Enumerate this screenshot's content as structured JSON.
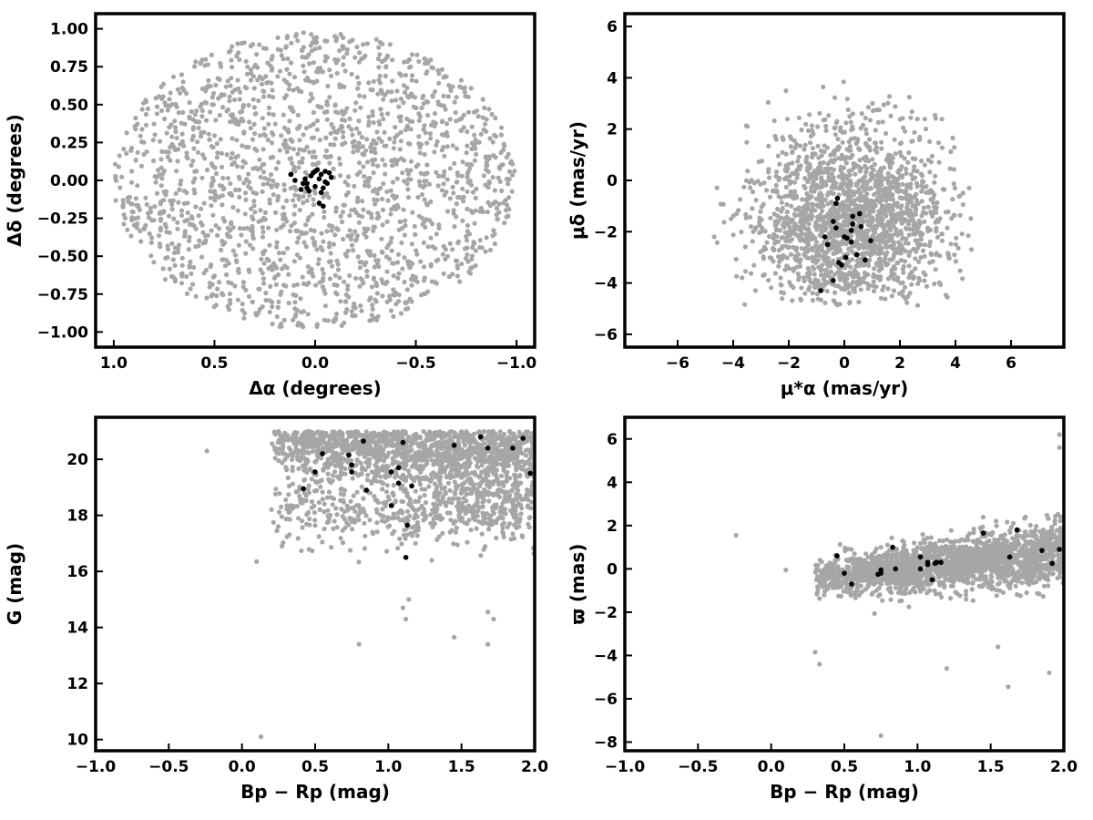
{
  "colors": {
    "field": "#a6a6a6",
    "members": "#000000",
    "axes": "#000000",
    "background": "#ffffff"
  },
  "chart_data": [
    {
      "id": "sky",
      "type": "scatter",
      "xlabel": "Δα (degrees)",
      "ylabel": "Δδ (degrees)",
      "xlim": [
        1.09,
        -1.09
      ],
      "ylim": [
        -1.1,
        1.1
      ],
      "x_inverted": true,
      "xticks": [
        1.0,
        0.5,
        0.0,
        -0.5,
        -1.0
      ],
      "xtick_labels": [
        "1.0",
        "0.5",
        "0.0",
        "−0.5",
        "−1.0"
      ],
      "yticks": [
        -1.0,
        -0.75,
        -0.5,
        -0.25,
        0.0,
        0.25,
        0.5,
        0.75,
        1.0
      ],
      "ytick_labels": [
        "−1.00",
        "−0.75",
        "−0.50",
        "−0.25",
        "0.00",
        "0.25",
        "0.50",
        "0.75",
        "1.00"
      ],
      "grid": false,
      "field": {
        "count": 1850,
        "shape": "disk",
        "center": [
          0,
          0
        ],
        "radius": 1.0
      },
      "series": [
        {
          "x": [
            0.1,
            0.06,
            0.04,
            0.02,
            0.0,
            -0.01,
            -0.03,
            -0.05,
            -0.07,
            -0.08,
            0.03,
            0.0,
            -0.02,
            -0.05,
            0.07,
            0.12,
            0.05,
            -0.03,
            -0.06,
            0.01,
            0.04,
            -0.04,
            -0.02,
            -0.04
          ],
          "y": [
            0.0,
            -0.02,
            -0.05,
            0.03,
            0.06,
            0.07,
            0.04,
            0.06,
            0.05,
            0.02,
            -0.07,
            -0.04,
            0.01,
            -0.01,
            -0.06,
            0.04,
            0.01,
            -0.08,
            -0.02,
            0.05,
            -0.02,
            -0.05,
            -0.15,
            -0.17
          ]
        }
      ]
    },
    {
      "id": "proper-motion",
      "type": "scatter",
      "xlabel": "μ*α  (mas/yr)",
      "ylabel": "μδ (mas/yr)",
      "xlim": [
        -7.9,
        7.9
      ],
      "ylim": [
        -6.5,
        6.5
      ],
      "xticks": [
        -6,
        -4,
        -2,
        0,
        2,
        4,
        6
      ],
      "xtick_labels": [
        "−6",
        "−4",
        "−2",
        "0",
        "2",
        "4",
        "6"
      ],
      "yticks": [
        -6,
        -4,
        -2,
        0,
        2,
        4,
        6
      ],
      "ytick_labels": [
        "−6",
        "−4",
        "−2",
        "0",
        "2",
        "4",
        "6"
      ],
      "grid": false,
      "field": {
        "count": 1850,
        "center": [
          0.2,
          -1.5
        ],
        "spread": [
          1.8,
          1.8
        ],
        "clip_ymin": -4.9,
        "clip_r": 4.8
      },
      "series": [
        {
          "x": [
            -0.25,
            -0.3,
            0.3,
            0.55,
            0.3,
            -0.4,
            -0.3,
            0.25,
            0.6,
            -0.7,
            -0.6,
            0.0,
            0.1,
            0.25,
            0.95,
            -0.2,
            -0.1,
            0.05,
            0.45,
            0.75,
            -0.85,
            -0.4
          ],
          "y": [
            -0.7,
            -0.9,
            -1.4,
            -1.3,
            -1.7,
            -1.6,
            -1.85,
            -1.95,
            -1.8,
            -2.2,
            -2.5,
            -2.2,
            -2.25,
            -2.4,
            -2.35,
            -3.2,
            -3.3,
            -3.0,
            -2.9,
            -3.1,
            -4.3,
            -3.9
          ]
        }
      ]
    },
    {
      "id": "cmd-g",
      "type": "scatter",
      "xlabel": "Bp − Rp (mag)",
      "ylabel": "G (mag)",
      "xlim": [
        -1.0,
        2.0
      ],
      "ylim": [
        9.6,
        21.5
      ],
      "xticks": [
        -1.0,
        -0.5,
        0.0,
        0.5,
        1.0,
        1.5,
        2.0
      ],
      "xtick_labels": [
        "−1.0",
        "−0.5",
        "0.0",
        "0.5",
        "1.0",
        "1.5",
        "2.0"
      ],
      "yticks": [
        10,
        12,
        14,
        16,
        18,
        20
      ],
      "ytick_labels": [
        "10",
        "12",
        "14",
        "16",
        "18",
        "20"
      ],
      "grid": false,
      "field": {
        "count": 1900,
        "xrange": [
          0.2,
          2.0
        ],
        "ymax": 21.0,
        "clump": [
          0.95,
          18.1
        ]
      },
      "outliers": {
        "x": [
          -0.24,
          0.1,
          0.13,
          0.8,
          1.45,
          1.68,
          1.68,
          1.72,
          1.1,
          1.12,
          1.14
        ],
        "y": [
          20.3,
          16.35,
          10.1,
          13.4,
          13.65,
          13.4,
          14.55,
          14.3,
          14.7,
          14.3,
          15.0
        ]
      },
      "series": [
        {
          "x": [
            0.42,
            0.5,
            0.55,
            0.73,
            0.75,
            0.75,
            0.83,
            0.85,
            1.02,
            1.02,
            1.07,
            1.07,
            1.1,
            1.12,
            1.13,
            1.16,
            1.45,
            1.63,
            1.68,
            1.85,
            1.92,
            1.97
          ],
          "y": [
            18.95,
            19.55,
            20.2,
            20.15,
            19.8,
            19.55,
            20.65,
            18.9,
            19.55,
            18.35,
            19.7,
            19.15,
            20.6,
            16.5,
            17.65,
            19.05,
            20.5,
            20.8,
            20.4,
            20.4,
            20.75,
            19.5
          ]
        }
      ]
    },
    {
      "id": "cmd-parallax",
      "type": "scatter",
      "xlabel": "Bp − Rp (mag)",
      "ylabel": "ϖ (mas)",
      "xlim": [
        -1.0,
        2.0
      ],
      "ylim": [
        -8.4,
        7.0
      ],
      "xticks": [
        -1.0,
        -0.5,
        0.0,
        0.5,
        1.0,
        1.5,
        2.0
      ],
      "xtick_labels": [
        "−1.0",
        "−0.5",
        "0.0",
        "0.5",
        "1.0",
        "1.5",
        "2.0"
      ],
      "yticks": [
        -8,
        -6,
        -4,
        -2,
        0,
        2,
        4,
        6
      ],
      "ytick_labels": [
        "−8",
        "−6",
        "−4",
        "−2",
        "0",
        "2",
        "4",
        "6"
      ],
      "grid": false,
      "field": {
        "count": 1900,
        "xrange": [
          0.3,
          2.0
        ],
        "trend": [
          -0.3,
          0.8
        ],
        "spread": 0.55
      },
      "outliers": {
        "x": [
          -0.24,
          0.1,
          0.3,
          0.33,
          0.75,
          1.62,
          1.9,
          1.97,
          1.97,
          1.2,
          1.55
        ],
        "y": [
          1.55,
          -0.05,
          -3.85,
          -4.4,
          -7.7,
          -5.45,
          -4.8,
          5.6,
          6.2,
          -4.6,
          -3.6
        ]
      },
      "series": [
        {
          "x": [
            0.45,
            0.5,
            0.55,
            0.73,
            0.75,
            0.75,
            0.83,
            0.85,
            1.02,
            1.02,
            1.07,
            1.07,
            1.1,
            1.12,
            1.13,
            1.16,
            1.45,
            1.63,
            1.68,
            1.85,
            1.92,
            1.97
          ],
          "y": [
            0.6,
            -0.2,
            -0.7,
            -0.25,
            -0.05,
            -0.2,
            1.0,
            0.0,
            0.55,
            0.0,
            0.2,
            0.3,
            -0.5,
            0.25,
            0.3,
            0.3,
            1.65,
            0.55,
            1.8,
            0.85,
            0.25,
            0.9
          ]
        }
      ]
    }
  ]
}
